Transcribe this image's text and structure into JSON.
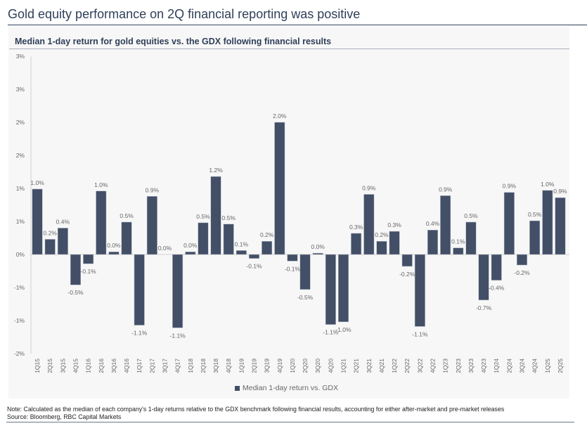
{
  "title": "Gold equity performance on 2Q financial reporting was positive",
  "note": "Note: Calculated as the median of each company's 1-day returns relative to the GDX benchmark following financial results, accounting for either after-market and pre-market releases",
  "source": "Source: Bloomberg, RBC Capital Markets",
  "colors": {
    "bar": "#424f67",
    "title": "#2f3f58"
  },
  "chart_data": {
    "type": "bar",
    "title": "Median 1-day return for gold equities vs. the GDX following financial results",
    "xlabel": "",
    "ylabel": "",
    "ylim": [
      -1.5,
      3.0
    ],
    "yticks": [
      3.0,
      2.5,
      2.0,
      1.5,
      1.0,
      0.5,
      0,
      -0.5,
      -1.0,
      -1.5
    ],
    "ytick_labels": [
      "3%",
      "3%",
      "2%",
      "2%",
      "1%",
      "1%",
      "0%",
      "-1%",
      "-1%",
      "-2%"
    ],
    "grid": false,
    "legend": {
      "position": "bottom",
      "entries": [
        "Median 1-day return vs. GDX"
      ]
    },
    "categories": [
      "1Q15",
      "2Q15",
      "3Q15",
      "4Q15",
      "1Q16",
      "2Q16",
      "3Q16",
      "4Q16",
      "1Q17",
      "2Q17",
      "3Q17",
      "4Q17",
      "1Q18",
      "2Q18",
      "3Q18",
      "4Q18",
      "1Q19",
      "2Q19",
      "3Q19",
      "4Q19",
      "1Q20",
      "2Q20",
      "3Q20",
      "4Q20",
      "1Q21",
      "2Q21",
      "3Q21",
      "4Q21",
      "1Q22",
      "2Q22",
      "3Q22",
      "4Q22",
      "1Q23",
      "2Q23",
      "3Q23",
      "4Q23",
      "1Q24",
      "2Q24",
      "3Q24",
      "4Q24",
      "1Q25",
      "2Q25"
    ],
    "series": [
      {
        "name": "Median 1-day return vs. GDX",
        "values": [
          0.99,
          0.23,
          0.4,
          -0.46,
          -0.14,
          0.96,
          0.04,
          0.49,
          -1.07,
          0.88,
          0.0,
          -1.11,
          0.04,
          0.48,
          1.18,
          0.46,
          0.06,
          -0.06,
          0.2,
          2.0,
          -0.1,
          -0.53,
          0.02,
          -1.06,
          -1.02,
          0.32,
          0.91,
          0.2,
          0.35,
          -0.18,
          -1.09,
          0.37,
          0.89,
          0.1,
          0.49,
          -0.69,
          -0.39,
          0.94,
          -0.16,
          0.51,
          0.97,
          0.86
        ],
        "data_labels": [
          "1.0%",
          "0.2%",
          "0.4%",
          "-0.5%",
          "-0.1%",
          "1.0%",
          "0.0%",
          "0.5%",
          "-1.1%",
          "0.9%",
          "0.0%",
          "-1.1%",
          "0.0%",
          "0.5%",
          "1.2%",
          "0.5%",
          "0.1%",
          "-0.1%",
          "0.2%",
          "2.0%",
          "-0.1%",
          "-0.5%",
          "0.0%",
          "-1.1%",
          "-1.0%",
          "0.3%",
          "0.9%",
          "0.2%",
          "0.3%",
          "-0.2%",
          "-1.1%",
          "0.4%",
          "0.9%",
          "0.1%",
          "0.5%",
          "-0.7%",
          "-0.4%",
          "0.9%",
          "-0.2%",
          "0.5%",
          "1.0%",
          "0.9%"
        ]
      }
    ]
  }
}
